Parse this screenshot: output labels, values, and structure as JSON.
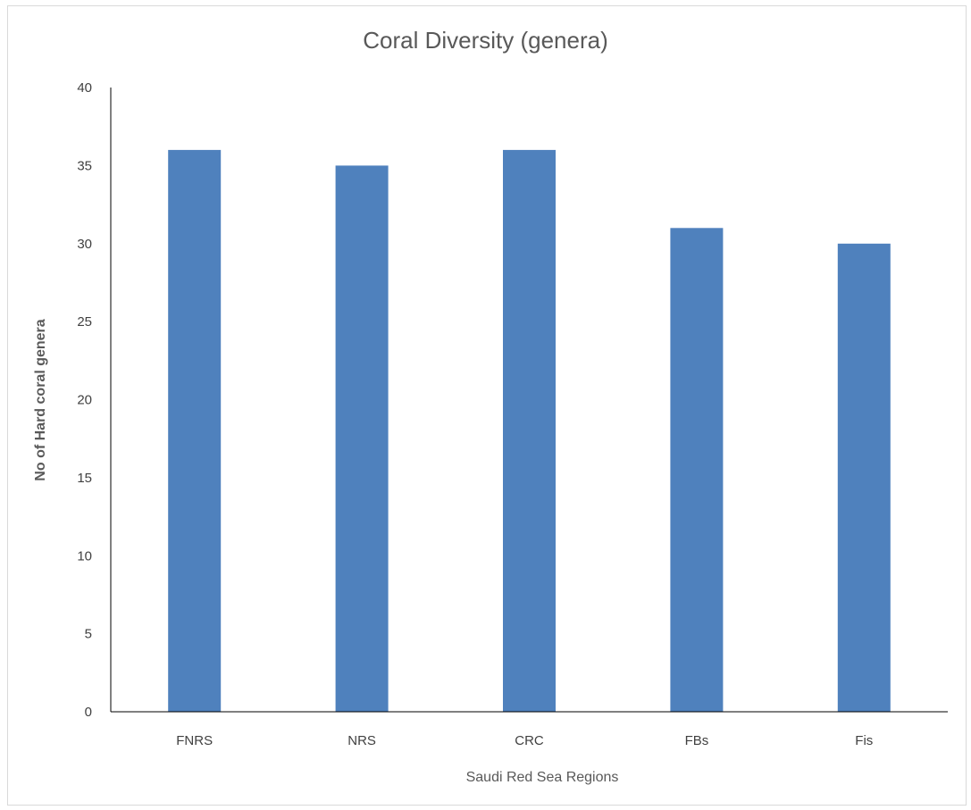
{
  "chart_data": {
    "type": "bar",
    "title": "Coral Diversity (genera)",
    "xlabel": "Saudi Red Sea Regions",
    "ylabel": "No of Hard coral genera",
    "categories": [
      "FNRS",
      "NRS",
      "CRC",
      "FBs",
      "Fis"
    ],
    "values": [
      36,
      35,
      36,
      31,
      30
    ],
    "ylim": [
      0,
      40
    ],
    "yticks": [
      0,
      5,
      10,
      15,
      20,
      25,
      30,
      35,
      40
    ],
    "grid": false,
    "legend": "none",
    "bar_color": "#4f81bd",
    "axis_color": "#000000"
  }
}
